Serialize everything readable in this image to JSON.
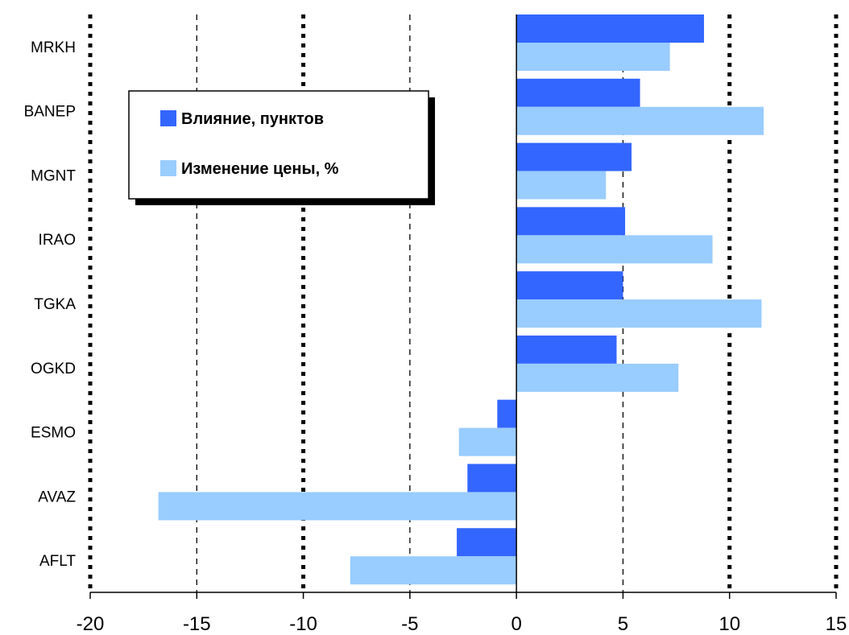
{
  "chart_data": {
    "type": "bar",
    "orientation": "horizontal",
    "categories": [
      "MRKH",
      "BANEP",
      "MGNT",
      "IRAO",
      "TGKA",
      "OGKD",
      "ESMO",
      "AVAZ",
      "AFLT"
    ],
    "series": [
      {
        "name": "Влияние, пунктов",
        "color": "#3366ff",
        "values": [
          8.8,
          5.8,
          5.4,
          5.1,
          5.0,
          4.7,
          -0.9,
          -2.3,
          -2.8
        ]
      },
      {
        "name": "Изменение цены, %",
        "color": "#99ccff",
        "values": [
          7.2,
          11.6,
          4.2,
          9.2,
          11.5,
          7.6,
          -2.7,
          -16.8,
          -7.8
        ]
      }
    ],
    "xlim": [
      -20,
      15
    ],
    "xticks": [
      "-20",
      "-15",
      "-10",
      "-5",
      "0",
      "5",
      "10",
      "15"
    ],
    "xlabel": "",
    "ylabel": "",
    "title": "",
    "grid": "vertical",
    "legend_position": "upper-left"
  }
}
